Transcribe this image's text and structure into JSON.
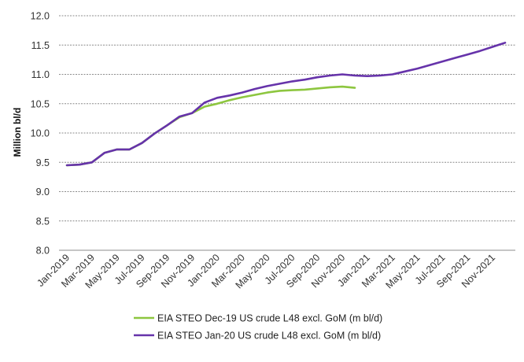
{
  "chart_data": {
    "type": "line",
    "ylabel": "Million bl/d",
    "xlabel": "",
    "ylim": [
      8.0,
      12.0
    ],
    "yticks": [
      "8.0",
      "8.5",
      "9.0",
      "9.5",
      "10.0",
      "10.5",
      "11.0",
      "11.5",
      "12.0"
    ],
    "grid": "horizontal",
    "legend_position": "bottom",
    "x_tick_labels": [
      "Jan-2019",
      "Mar-2019",
      "May-2019",
      "Jul-2019",
      "Sep-2019",
      "Nov-2019",
      "Jan-2020",
      "Mar-2020",
      "May-2020",
      "Jul-2020",
      "Sep-2020",
      "Nov-2020",
      "Jan-2021",
      "Mar-2021",
      "May-2021",
      "Jul-2021",
      "Sep-2021",
      "Nov-2021"
    ],
    "x": [
      "Jan-2019",
      "Feb-2019",
      "Mar-2019",
      "Apr-2019",
      "May-2019",
      "Jun-2019",
      "Jul-2019",
      "Aug-2019",
      "Sep-2019",
      "Oct-2019",
      "Nov-2019",
      "Dec-2019",
      "Jan-2020",
      "Feb-2020",
      "Mar-2020",
      "Apr-2020",
      "May-2020",
      "Jun-2020",
      "Jul-2020",
      "Aug-2020",
      "Sep-2020",
      "Oct-2020",
      "Nov-2020",
      "Dec-2020",
      "Jan-2021",
      "Feb-2021",
      "Mar-2021",
      "Apr-2021",
      "May-2021",
      "Jun-2021",
      "Jul-2021",
      "Aug-2021",
      "Sep-2021",
      "Oct-2021",
      "Nov-2021",
      "Dec-2021"
    ],
    "series": [
      {
        "name": "EIA STEO Dec-19 US crude L48 excl. GoM (m bl/d)",
        "color": "#8dc63f",
        "values": [
          9.45,
          9.46,
          9.5,
          9.66,
          9.72,
          9.72,
          9.83,
          9.99,
          10.13,
          10.27,
          10.34,
          10.45,
          10.5,
          10.56,
          10.61,
          10.65,
          10.69,
          10.72,
          10.73,
          10.74,
          10.76,
          10.78,
          10.79,
          10.77,
          null,
          null,
          null,
          null,
          null,
          null,
          null,
          null,
          null,
          null,
          null,
          null
        ]
      },
      {
        "name": "EIA STEO Jan-20 US crude L48 excl. GoM (m bl/d)",
        "color": "#6633aa",
        "values": [
          9.45,
          9.46,
          9.5,
          9.66,
          9.72,
          9.72,
          9.83,
          9.99,
          10.13,
          10.28,
          10.34,
          10.52,
          10.6,
          10.64,
          10.69,
          10.75,
          10.8,
          10.84,
          10.88,
          10.91,
          10.95,
          10.98,
          11.0,
          10.98,
          10.97,
          10.98,
          11.0,
          11.05,
          11.1,
          11.16,
          11.22,
          11.28,
          11.34,
          11.4,
          11.47,
          11.54
        ]
      }
    ]
  }
}
